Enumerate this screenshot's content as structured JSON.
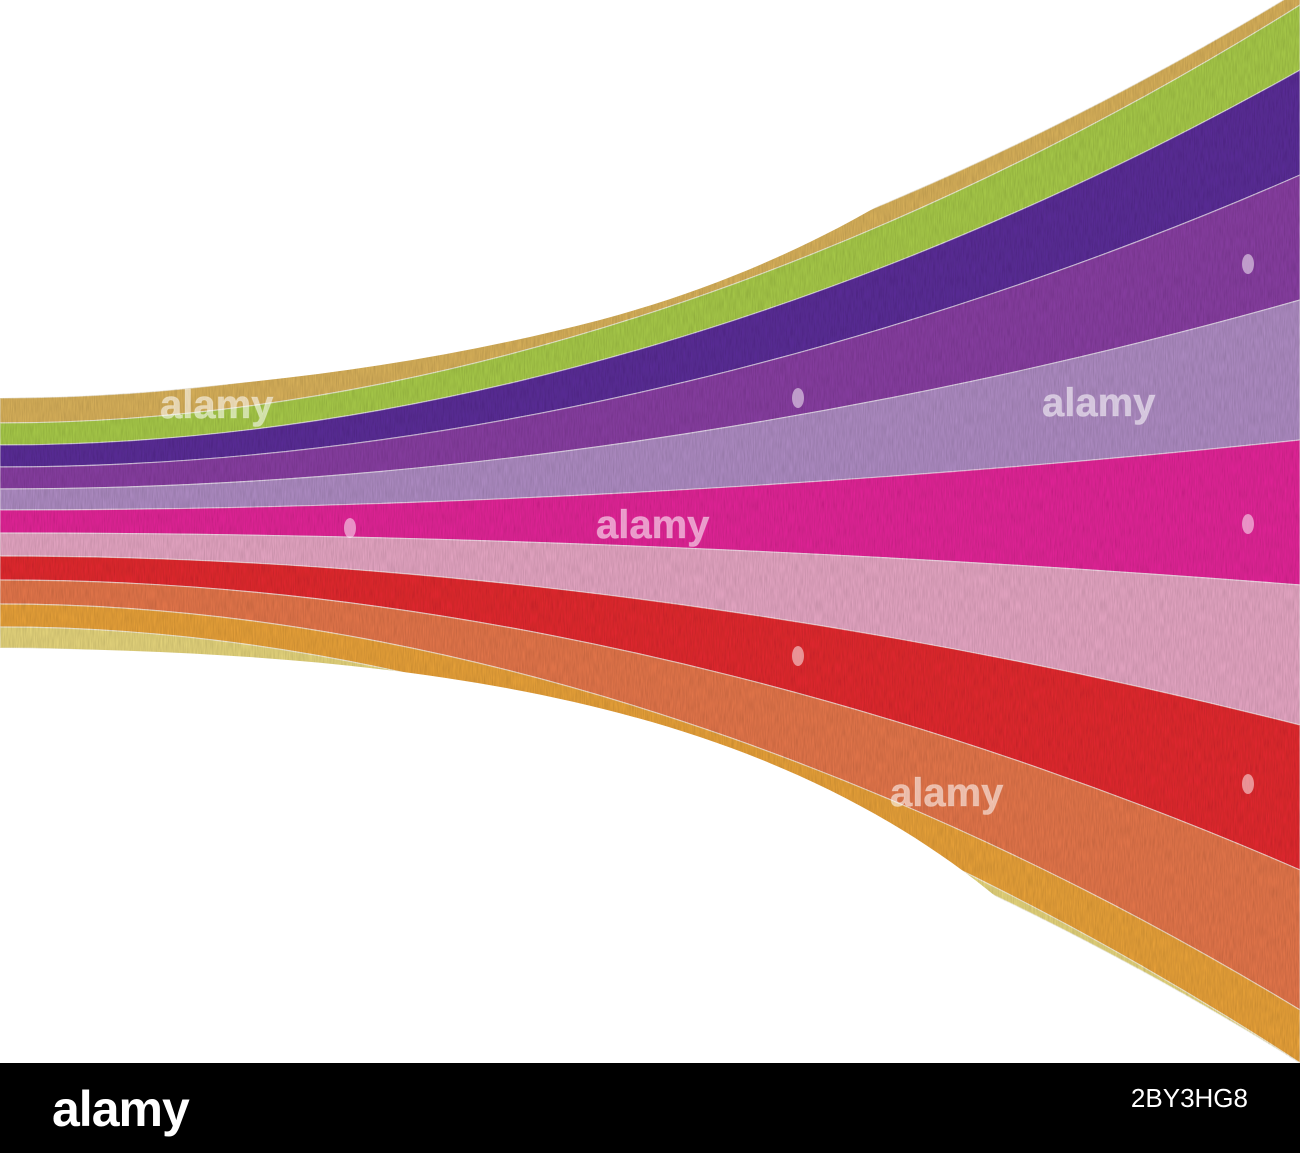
{
  "image": {
    "background_color": "#ffffff",
    "stripes": [
      {
        "name": "mustard",
        "color": "#dcb45c"
      },
      {
        "name": "lime",
        "color": "#aacd4a"
      },
      {
        "name": "indigo",
        "color": "#5c2e9a"
      },
      {
        "name": "purple",
        "color": "#8a3fa4"
      },
      {
        "name": "lavender",
        "color": "#b18ec6"
      },
      {
        "name": "magenta",
        "color": "#e6259a"
      },
      {
        "name": "pink",
        "color": "#e9a8c6"
      },
      {
        "name": "red",
        "color": "#e62a30"
      },
      {
        "name": "coral",
        "color": "#e8784c"
      },
      {
        "name": "orange",
        "color": "#eca43a"
      },
      {
        "name": "pale-yellow",
        "color": "#e9d87e"
      }
    ],
    "texture": "woven-fabric",
    "watermark_text": "alamy"
  },
  "footer": {
    "logo": "alamy",
    "stock_code": "2BY3HG8",
    "background_color": "#000000"
  }
}
